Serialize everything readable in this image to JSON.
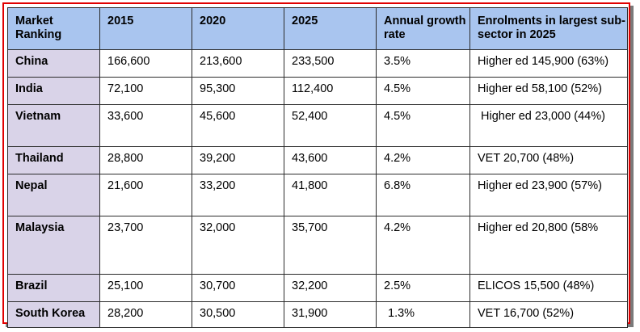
{
  "table": {
    "headers": [
      "Market Ranking",
      "2015",
      "2020",
      "2025",
      "Annual growth rate",
      "Enrolments in largest sub-sector in 2025"
    ],
    "rows": [
      {
        "market": "China",
        "y2015": "166,600",
        "y2020": "213,600",
        "y2025": "233,500",
        "growth": "3.5%",
        "largest": "Higher ed 145,900 (63%)"
      },
      {
        "market": "India",
        "y2015": "72,100",
        "y2020": "95,300",
        "y2025": "112,400",
        "growth": "4.5%",
        "largest": "Higher ed 58,100 (52%)"
      },
      {
        "market": "Vietnam",
        "y2015": "33,600",
        "y2020": "45,600",
        "y2025": "52,400",
        "growth": "4.5%",
        "largest": "Higher ed 23,000 (44%)"
      },
      {
        "market": "Thailand",
        "y2015": "28,800",
        "y2020": "39,200",
        "y2025": "43,600",
        "growth": "4.2%",
        "largest": "VET 20,700 (48%)"
      },
      {
        "market": "Nepal",
        "y2015": "21,600",
        "y2020": "33,200",
        "y2025": "41,800",
        "growth": "6.8%",
        "largest": "Higher ed 23,900 (57%)"
      },
      {
        "market": "Malaysia",
        "y2015": "23,700",
        "y2020": "32,000",
        "y2025": "35,700",
        "growth": "4.2%",
        "largest": "Higher ed 20,800 (58%"
      },
      {
        "market": "Brazil",
        "y2015": "25,100",
        "y2020": "30,700",
        "y2025": "32,200",
        "growth": "2.5%",
        "largest": "ELICOS 15,500 (48%)"
      },
      {
        "market": "South Korea",
        "y2015": "28,200",
        "y2020": "30,500",
        "y2025": "31,900",
        "growth": "1.3%",
        "largest": "VET 16,700 (52%)"
      }
    ]
  }
}
